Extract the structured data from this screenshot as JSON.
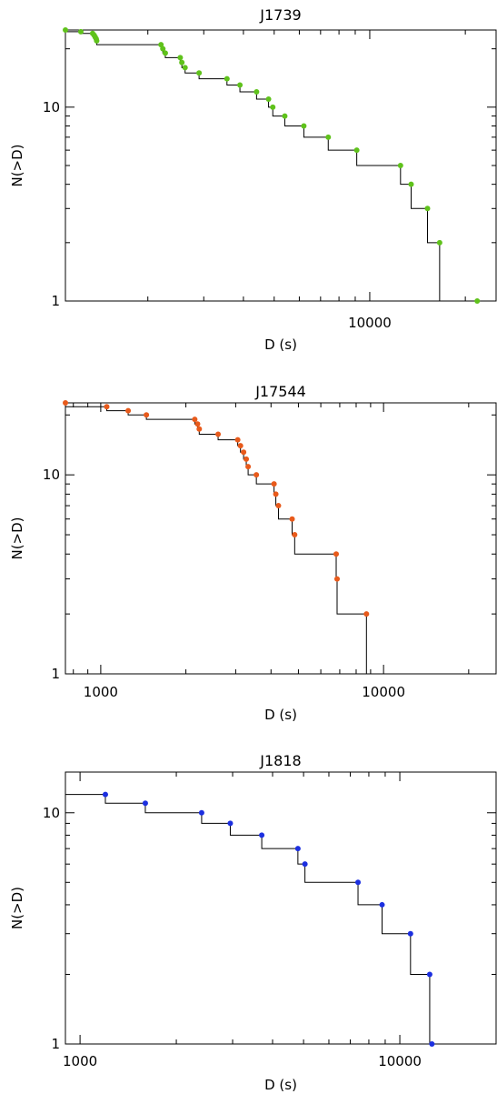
{
  "chart_data": [
    {
      "type": "scatter",
      "title": "J1739",
      "xlabel": "D (s)",
      "ylabel": "N(>D)",
      "x_scale": "log",
      "y_scale": "log",
      "xlim": [
        1100,
        25000
      ],
      "ylim": [
        1,
        25
      ],
      "x_ticklabels": [
        {
          "value": 10000,
          "label": "10000"
        }
      ],
      "y_ticklabels": [
        {
          "value": 1,
          "label": "1"
        },
        {
          "value": 10,
          "label": "10"
        }
      ],
      "marker_color": "#5fc21b",
      "points": [
        {
          "x": 1100,
          "y": 25
        },
        {
          "x": 1230,
          "y": 24.5
        },
        {
          "x": 1340,
          "y": 24
        },
        {
          "x": 1355,
          "y": 23.5
        },
        {
          "x": 1365,
          "y": 23
        },
        {
          "x": 1375,
          "y": 22.5
        },
        {
          "x": 1380,
          "y": 22
        },
        {
          "x": 2200,
          "y": 21
        },
        {
          "x": 2230,
          "y": 20
        },
        {
          "x": 2270,
          "y": 19
        },
        {
          "x": 2530,
          "y": 18
        },
        {
          "x": 2560,
          "y": 17
        },
        {
          "x": 2620,
          "y": 16
        },
        {
          "x": 2900,
          "y": 15
        },
        {
          "x": 3550,
          "y": 14
        },
        {
          "x": 3900,
          "y": 13
        },
        {
          "x": 4400,
          "y": 12
        },
        {
          "x": 4800,
          "y": 11
        },
        {
          "x": 4950,
          "y": 10
        },
        {
          "x": 5400,
          "y": 9
        },
        {
          "x": 6200,
          "y": 8
        },
        {
          "x": 7400,
          "y": 7
        },
        {
          "x": 9100,
          "y": 6
        },
        {
          "x": 12500,
          "y": 5
        },
        {
          "x": 13500,
          "y": 4
        },
        {
          "x": 15200,
          "y": 3
        },
        {
          "x": 16600,
          "y": 2
        },
        {
          "x": 21800,
          "y": 1
        }
      ]
    },
    {
      "type": "scatter",
      "title": "J17544",
      "xlabel": "D (s)",
      "ylabel": "N(>D)",
      "x_scale": "log",
      "y_scale": "log",
      "xlim": [
        750,
        25000
      ],
      "ylim": [
        1,
        23
      ],
      "x_ticklabels": [
        {
          "value": 1000,
          "label": "1000"
        },
        {
          "value": 10000,
          "label": "10000"
        }
      ],
      "y_ticklabels": [
        {
          "value": 1,
          "label": "1"
        },
        {
          "value": 10,
          "label": "10"
        }
      ],
      "marker_color": "#e85a1b",
      "points": [
        {
          "x": 750,
          "y": 23
        },
        {
          "x": 1050,
          "y": 22
        },
        {
          "x": 1250,
          "y": 21
        },
        {
          "x": 1450,
          "y": 20
        },
        {
          "x": 2150,
          "y": 19
        },
        {
          "x": 2200,
          "y": 18
        },
        {
          "x": 2230,
          "y": 17
        },
        {
          "x": 2600,
          "y": 16
        },
        {
          "x": 3050,
          "y": 15
        },
        {
          "x": 3120,
          "y": 14
        },
        {
          "x": 3200,
          "y": 13
        },
        {
          "x": 3270,
          "y": 12
        },
        {
          "x": 3320,
          "y": 11
        },
        {
          "x": 3550,
          "y": 10
        },
        {
          "x": 4100,
          "y": 9
        },
        {
          "x": 4160,
          "y": 8
        },
        {
          "x": 4250,
          "y": 7
        },
        {
          "x": 4750,
          "y": 6
        },
        {
          "x": 4850,
          "y": 5
        },
        {
          "x": 6800,
          "y": 4
        },
        {
          "x": 6850,
          "y": 3
        },
        {
          "x": 8700,
          "y": 2
        }
      ]
    },
    {
      "type": "scatter",
      "title": "J1818",
      "xlabel": "D (s)",
      "ylabel": "N(>D)",
      "x_scale": "log",
      "y_scale": "log",
      "xlim": [
        900,
        20000
      ],
      "ylim": [
        1,
        15
      ],
      "x_ticklabels": [
        {
          "value": 1000,
          "label": "1000"
        },
        {
          "value": 10000,
          "label": "10000"
        }
      ],
      "y_ticklabels": [
        {
          "value": 1,
          "label": "1"
        },
        {
          "value": 10,
          "label": "10"
        }
      ],
      "marker_color": "#1c2fe0",
      "points": [
        {
          "x": 1200,
          "y": 12
        },
        {
          "x": 1600,
          "y": 11
        },
        {
          "x": 2400,
          "y": 10
        },
        {
          "x": 2950,
          "y": 9
        },
        {
          "x": 3700,
          "y": 8
        },
        {
          "x": 4800,
          "y": 7
        },
        {
          "x": 5050,
          "y": 6
        },
        {
          "x": 7400,
          "y": 5
        },
        {
          "x": 8800,
          "y": 4
        },
        {
          "x": 10800,
          "y": 3
        },
        {
          "x": 12400,
          "y": 2
        },
        {
          "x": 12600,
          "y": 1
        }
      ]
    }
  ]
}
